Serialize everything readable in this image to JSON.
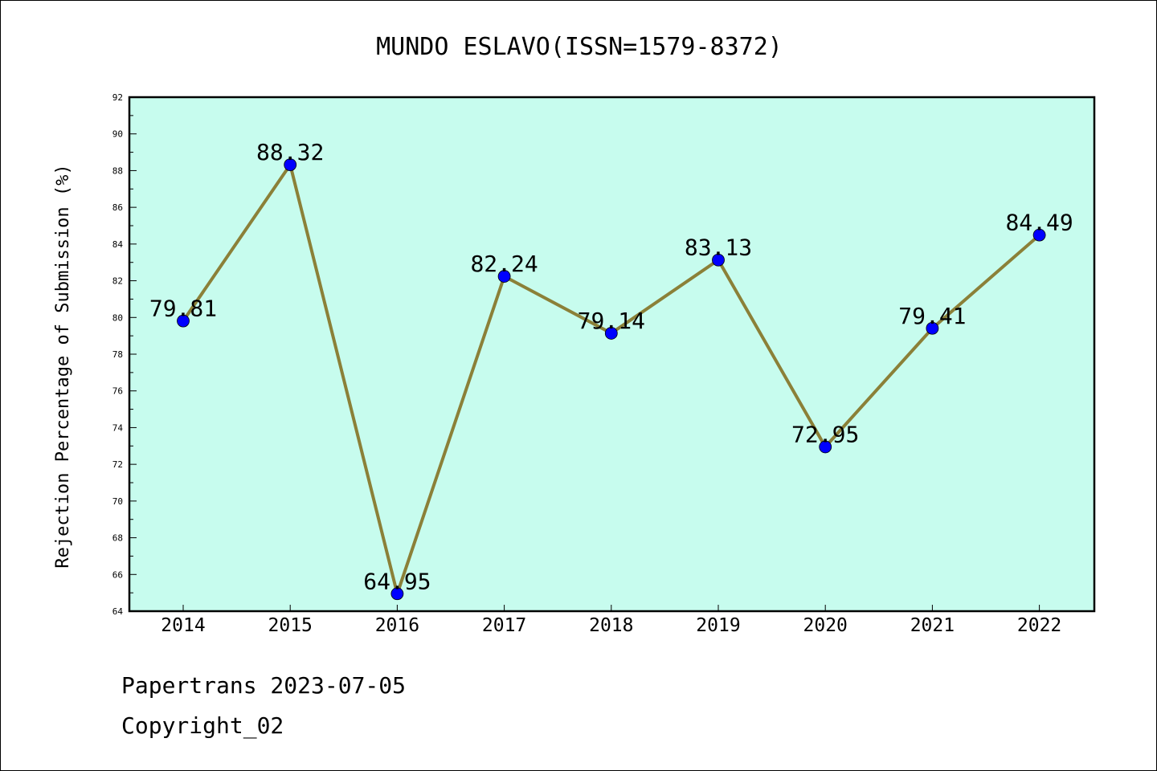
{
  "chart_data": {
    "type": "line",
    "title": "MUNDO ESLAVO(ISSN=1579-8372)",
    "xlabel": "",
    "ylabel": "Rejection Percentage of Submission (%)",
    "categories": [
      "2014",
      "2015",
      "2016",
      "2017",
      "2018",
      "2019",
      "2020",
      "2021",
      "2022"
    ],
    "values": [
      79.81,
      88.32,
      64.95,
      82.24,
      79.14,
      83.13,
      72.95,
      79.41,
      84.49
    ],
    "data_labels": [
      "79.81",
      "88.32",
      "64.95",
      "82.24",
      "79.14",
      "83.13",
      "72.95",
      "79.41",
      "84.49"
    ],
    "ylim": [
      64,
      92
    ],
    "yticks": [
      "64",
      "66",
      "68",
      "70",
      "72",
      "74",
      "76",
      "78",
      "80",
      "82",
      "84",
      "86",
      "88",
      "90",
      "92"
    ],
    "grid": false,
    "legend": "none",
    "colors": {
      "plot_background": "#c7fcee",
      "line": "#8b8038",
      "marker": "#0000ff",
      "frame": "#000000"
    }
  },
  "footer": {
    "line1": "Papertrans 2023-07-05",
    "line2": "Copyright_02"
  }
}
